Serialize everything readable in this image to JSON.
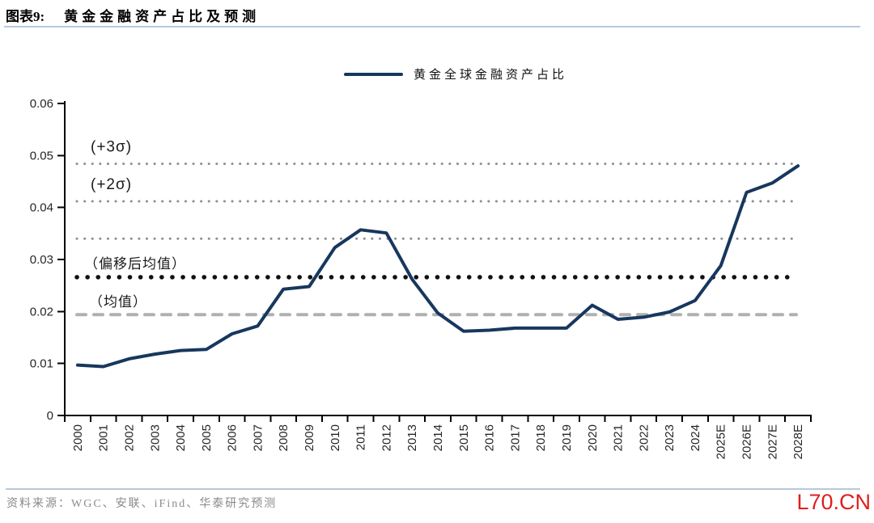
{
  "header": {
    "figure_label": "图表9:",
    "title": "黄金金融资产占比及预测"
  },
  "chart_data": {
    "type": "line",
    "title": "黄金金融资产占比及预测",
    "xlabel": "",
    "ylabel": "",
    "grid": false,
    "legend_position": "top-center",
    "ylim": [
      0,
      0.06
    ],
    "yticks": {
      "values": [
        0,
        0.01,
        0.02,
        0.03,
        0.04,
        0.05,
        0.06
      ],
      "labels": [
        "0",
        "0.01",
        "0.02",
        "0.03",
        "0.04",
        "0.05",
        "0.06"
      ]
    },
    "categories": [
      "2000",
      "2001",
      "2002",
      "2003",
      "2004",
      "2005",
      "2006",
      "2007",
      "2008",
      "2009",
      "2010",
      "2011",
      "2012",
      "2013",
      "2014",
      "2015",
      "2016",
      "2017",
      "2018",
      "2019",
      "2020",
      "2021",
      "2022",
      "2023",
      "2024",
      "2025E",
      "2026E",
      "2027E",
      "2028E"
    ],
    "series": [
      {
        "name": "黄金全球金融资产占比",
        "color": "#17375e",
        "values": [
          0.0097,
          0.0094,
          0.0109,
          0.0118,
          0.0125,
          0.0127,
          0.0157,
          0.0172,
          0.0243,
          0.0248,
          0.0323,
          0.0357,
          0.0351,
          0.0262,
          0.0197,
          0.0162,
          0.0164,
          0.0168,
          0.0168,
          0.0168,
          0.0212,
          0.0185,
          0.0189,
          0.0199,
          0.0221,
          0.0288,
          0.0429,
          0.0447,
          0.048
        ]
      }
    ],
    "reference_lines": [
      {
        "label": "(+3σ)",
        "value": 0.0484,
        "style": "dotted",
        "color": "#8f8f8f"
      },
      {
        "label": "(+2σ)",
        "value": 0.0412,
        "style": "dotted",
        "color": "#8f8f8f"
      },
      {
        "label": "",
        "value": 0.034,
        "style": "dotted",
        "color": "#8f8f8f"
      },
      {
        "label": "（偏移后均值）",
        "value": 0.0266,
        "style": "bold-dotted",
        "color": "#111111"
      },
      {
        "label": "（均值）",
        "value": 0.0194,
        "style": "dashed",
        "color": "#b0b0b0"
      }
    ]
  },
  "footer": {
    "source": "资料来源：WGC、安联、iFind、华泰研究预测",
    "watermark": "L70.CN"
  },
  "colors": {
    "series": "#17375e",
    "divider": "#b7c9db",
    "axis": "#000000",
    "tick_text": "#262626",
    "annotation_text": "#1a1a1a",
    "source_text": "#8a8a8a",
    "watermark": "#e01f1f"
  }
}
